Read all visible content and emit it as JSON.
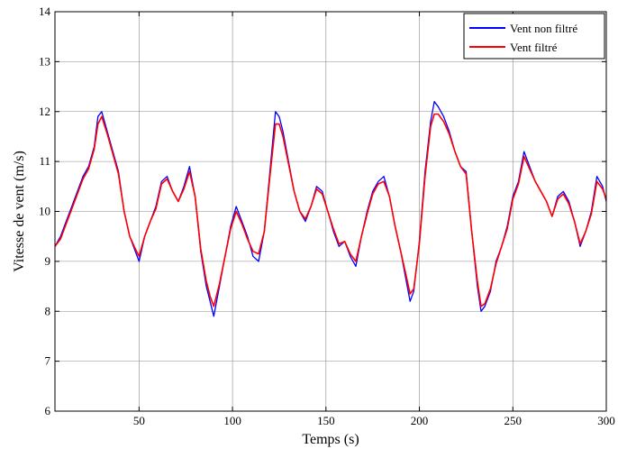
{
  "chart_data": {
    "type": "line",
    "xlabel": "Temps (s)",
    "ylabel": "Vitesse de vent (m/s)",
    "xlim": [
      5,
      300
    ],
    "ylim": [
      6,
      14
    ],
    "xticks": [
      50,
      100,
      150,
      200,
      250,
      300
    ],
    "yticks": [
      6,
      7,
      8,
      9,
      10,
      11,
      12,
      13,
      14
    ],
    "grid": true,
    "legend_position": "top-right",
    "series": [
      {
        "name": "Vent non filtré",
        "color": "#0000ff",
        "x": [
          5,
          8,
          11,
          14,
          17,
          20,
          23,
          26,
          28,
          30,
          33,
          36,
          39,
          42,
          45,
          48,
          50,
          53,
          56,
          59,
          62,
          65,
          68,
          71,
          74,
          77,
          80,
          83,
          86,
          88,
          90,
          93,
          96,
          99,
          102,
          105,
          108,
          111,
          114,
          117,
          120,
          123,
          125,
          127,
          130,
          133,
          136,
          139,
          142,
          145,
          148,
          151,
          154,
          157,
          160,
          163,
          166,
          169,
          172,
          175,
          178,
          181,
          184,
          187,
          190,
          193,
          195,
          197,
          200,
          203,
          206,
          208,
          210,
          213,
          216,
          219,
          222,
          225,
          228,
          231,
          233,
          235,
          238,
          241,
          244,
          247,
          250,
          253,
          256,
          259,
          262,
          265,
          268,
          271,
          274,
          277,
          280,
          283,
          286,
          289,
          292,
          295,
          298,
          300
        ],
        "y": [
          9.3,
          9.5,
          9.8,
          10.1,
          10.4,
          10.7,
          10.9,
          11.3,
          11.9,
          12.0,
          11.6,
          11.2,
          10.8,
          10.0,
          9.5,
          9.2,
          9.0,
          9.5,
          9.8,
          10.1,
          10.6,
          10.7,
          10.4,
          10.2,
          10.5,
          10.9,
          10.3,
          9.2,
          8.5,
          8.2,
          7.9,
          8.5,
          9.1,
          9.7,
          10.1,
          9.8,
          9.5,
          9.1,
          9.0,
          9.6,
          10.8,
          12.0,
          11.9,
          11.6,
          11.0,
          10.4,
          10.0,
          9.8,
          10.1,
          10.5,
          10.4,
          10.0,
          9.6,
          9.3,
          9.4,
          9.1,
          8.9,
          9.5,
          10.0,
          10.4,
          10.6,
          10.7,
          10.3,
          9.7,
          9.2,
          8.6,
          8.2,
          8.4,
          9.4,
          10.8,
          11.8,
          12.2,
          12.1,
          11.9,
          11.6,
          11.2,
          10.9,
          10.8,
          9.6,
          8.5,
          8.0,
          8.1,
          8.4,
          9.0,
          9.3,
          9.7,
          10.3,
          10.6,
          11.2,
          10.9,
          10.6,
          10.4,
          10.2,
          9.9,
          10.3,
          10.4,
          10.2,
          9.8,
          9.3,
          9.6,
          10.0,
          10.7,
          10.5,
          10.2
        ]
      },
      {
        "name": "Vent filtré",
        "color": "#ff0000",
        "x": [
          5,
          8,
          11,
          14,
          17,
          20,
          23,
          26,
          28,
          30,
          33,
          36,
          39,
          42,
          45,
          48,
          50,
          53,
          56,
          59,
          62,
          65,
          68,
          71,
          74,
          77,
          80,
          83,
          86,
          88,
          90,
          93,
          96,
          99,
          102,
          105,
          108,
          111,
          114,
          117,
          120,
          123,
          125,
          127,
          130,
          133,
          136,
          139,
          142,
          145,
          148,
          151,
          154,
          157,
          160,
          163,
          166,
          169,
          172,
          175,
          178,
          181,
          184,
          187,
          190,
          193,
          195,
          197,
          200,
          203,
          206,
          208,
          210,
          213,
          216,
          219,
          222,
          225,
          228,
          231,
          233,
          235,
          238,
          241,
          244,
          247,
          250,
          253,
          256,
          259,
          262,
          265,
          268,
          271,
          274,
          277,
          280,
          283,
          286,
          289,
          292,
          295,
          298,
          300
        ],
        "y": [
          9.3,
          9.45,
          9.75,
          10.05,
          10.35,
          10.65,
          10.85,
          11.25,
          11.75,
          11.9,
          11.55,
          11.15,
          10.75,
          10.0,
          9.5,
          9.25,
          9.1,
          9.5,
          9.8,
          10.05,
          10.55,
          10.65,
          10.4,
          10.2,
          10.45,
          10.8,
          10.3,
          9.25,
          8.6,
          8.3,
          8.1,
          8.55,
          9.1,
          9.65,
          10.0,
          9.75,
          9.45,
          9.2,
          9.15,
          9.6,
          10.7,
          11.75,
          11.75,
          11.5,
          10.95,
          10.4,
          10.0,
          9.85,
          10.1,
          10.45,
          10.35,
          10.0,
          9.65,
          9.35,
          9.4,
          9.15,
          9.0,
          9.5,
          9.95,
          10.35,
          10.55,
          10.6,
          10.3,
          9.7,
          9.2,
          8.7,
          8.35,
          8.45,
          9.35,
          10.7,
          11.7,
          11.95,
          11.95,
          11.8,
          11.55,
          11.2,
          10.9,
          10.75,
          9.6,
          8.6,
          8.1,
          8.15,
          8.45,
          8.95,
          9.3,
          9.65,
          10.25,
          10.55,
          11.1,
          10.85,
          10.6,
          10.4,
          10.2,
          9.9,
          10.25,
          10.35,
          10.15,
          9.8,
          9.35,
          9.6,
          9.95,
          10.6,
          10.45,
          10.25
        ]
      }
    ]
  }
}
